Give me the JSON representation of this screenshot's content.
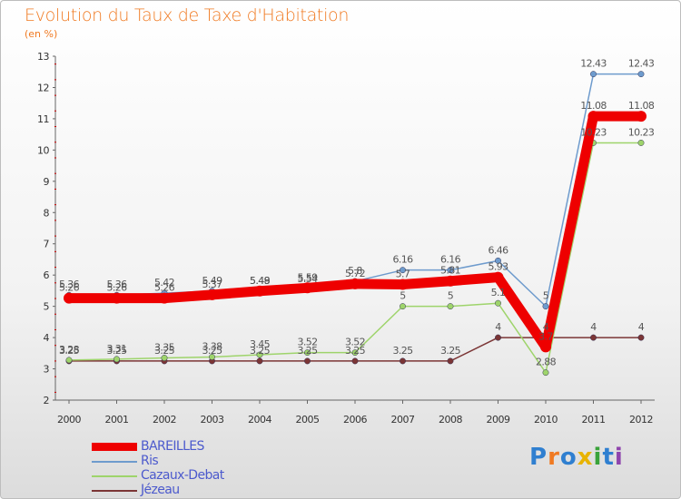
{
  "colors": {
    "title": "#f07a22",
    "legend_text": "#4c5acd"
  },
  "chart_data": {
    "type": "line",
    "title": "Evolution du Taux de Taxe d'Habitation",
    "subtitle": "(en %)",
    "xlabel": "",
    "ylabel": "",
    "ylim": [
      2,
      13
    ],
    "yticks": [
      "2",
      "3",
      "4",
      "5",
      "6",
      "7",
      "8",
      "9",
      "10",
      "11",
      "12",
      "13"
    ],
    "categories": [
      "2000",
      "2001",
      "2002",
      "2003",
      "2004",
      "2005",
      "2006",
      "2007",
      "2008",
      "2009",
      "2010",
      "2011",
      "2012"
    ],
    "grid": false,
    "legend_position": "bottom-left",
    "series": [
      {
        "name": "BAREILLES",
        "color": "#ee0000",
        "values": [
          5.26,
          5.26,
          5.26,
          5.37,
          5.49,
          5.59,
          5.72,
          5.7,
          5.81,
          5.93,
          3.7,
          11.08,
          11.08
        ],
        "labels": [
          "5.26",
          "5.26",
          "5.26",
          "5.37",
          "5.49",
          "5.59",
          "5.72",
          "5.7",
          "5.81",
          "5.93",
          "3.7",
          "11.08",
          "11.08"
        ]
      },
      {
        "name": "Ris",
        "color": "#6e9bcd",
        "values": [
          5.36,
          5.36,
          5.42,
          5.49,
          5.48,
          5.54,
          5.8,
          6.16,
          6.16,
          6.46,
          5,
          12.43,
          12.43
        ],
        "labels": [
          "5.36",
          "5.36",
          "5.42",
          "5.49",
          "5.48",
          "5.54",
          "5.8",
          "6.16",
          "6.16",
          "6.46",
          "5",
          "12.43",
          "12.43"
        ]
      },
      {
        "name": "Cazaux-Debat",
        "color": "#9ed46b",
        "values": [
          3.28,
          3.31,
          3.35,
          3.38,
          3.45,
          3.52,
          3.52,
          5,
          5,
          5.1,
          2.88,
          10.23,
          10.23
        ],
        "labels": [
          "3.28",
          "3.31",
          "3.35",
          "3.38",
          "3.45",
          "3.52",
          "3.52",
          "5",
          "5",
          "5.1",
          "2.88",
          "10.23",
          "10.23"
        ]
      },
      {
        "name": "Jézeau",
        "color": "#7b3535",
        "values": [
          3.25,
          3.25,
          3.25,
          3.25,
          3.25,
          3.25,
          3.25,
          3.25,
          3.25,
          4,
          4,
          4,
          4
        ],
        "labels": [
          "3.25",
          "3.25",
          "3.25",
          "3.25",
          "3.25",
          "3.25",
          "3.25",
          "3.25",
          "3.25",
          "4",
          "4",
          "4",
          "4"
        ]
      }
    ]
  },
  "logo": {
    "letters": [
      "P",
      "r",
      "o",
      "x",
      "i",
      "t",
      "i"
    ],
    "colors": [
      "#2f7fd0",
      "#f07a22",
      "#2f7fd0",
      "#e8b300",
      "#3aa33a",
      "#2f7fd0",
      "#8e44ad"
    ]
  }
}
